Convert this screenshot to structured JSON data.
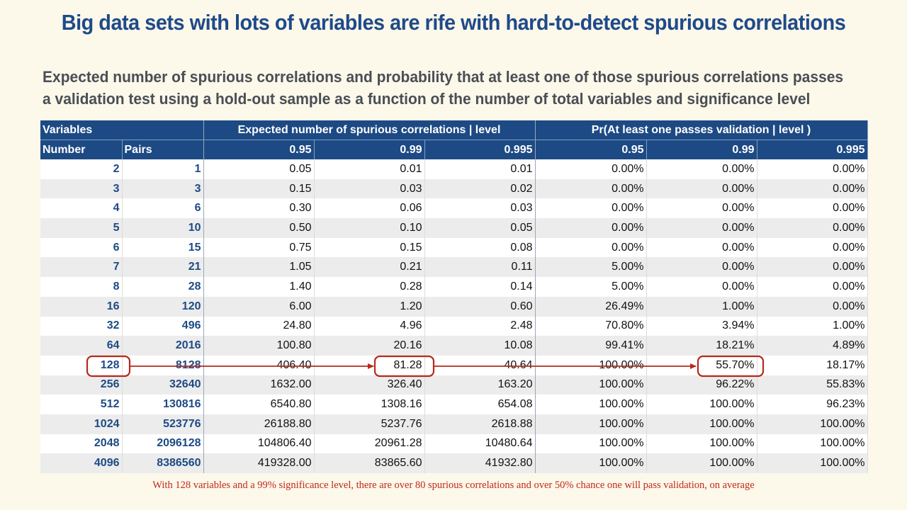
{
  "title": "Big data sets with lots of variables are rife with hard-to-detect spurious correlations",
  "subtitle": {
    "line1": "Expected number of spurious correlations and probability that at least one of those spurious correlations passes",
    "line2": "a validation test using a hold-out sample as a function of the number of total variables and significance level"
  },
  "table": {
    "group_headers": {
      "variables": "Variables",
      "expected": "Expected number of spurious correlations | level",
      "probability": "Pr(At least one passes validation | level )"
    },
    "column_headers": [
      "Number",
      "Pairs",
      "0.95",
      "0.99",
      "0.995",
      "0.95",
      "0.99",
      "0.995"
    ],
    "rows": [
      [
        "2",
        "1",
        "0.05",
        "0.01",
        "0.01",
        "0.00%",
        "0.00%",
        "0.00%"
      ],
      [
        "3",
        "3",
        "0.15",
        "0.03",
        "0.02",
        "0.00%",
        "0.00%",
        "0.00%"
      ],
      [
        "4",
        "6",
        "0.30",
        "0.06",
        "0.03",
        "0.00%",
        "0.00%",
        "0.00%"
      ],
      [
        "5",
        "10",
        "0.50",
        "0.10",
        "0.05",
        "0.00%",
        "0.00%",
        "0.00%"
      ],
      [
        "6",
        "15",
        "0.75",
        "0.15",
        "0.08",
        "0.00%",
        "0.00%",
        "0.00%"
      ],
      [
        "7",
        "21",
        "1.05",
        "0.21",
        "0.11",
        "5.00%",
        "0.00%",
        "0.00%"
      ],
      [
        "8",
        "28",
        "1.40",
        "0.28",
        "0.14",
        "5.00%",
        "0.00%",
        "0.00%"
      ],
      [
        "16",
        "120",
        "6.00",
        "1.20",
        "0.60",
        "26.49%",
        "1.00%",
        "0.00%"
      ],
      [
        "32",
        "496",
        "24.80",
        "4.96",
        "2.48",
        "70.80%",
        "3.94%",
        "1.00%"
      ],
      [
        "64",
        "2016",
        "100.80",
        "20.16",
        "10.08",
        "99.41%",
        "18.21%",
        "4.89%"
      ],
      [
        "128",
        "8128",
        "406.40",
        "81.28",
        "40.64",
        "100.00%",
        "55.70%",
        "18.17%"
      ],
      [
        "256",
        "32640",
        "1632.00",
        "326.40",
        "163.20",
        "100.00%",
        "96.22%",
        "55.83%"
      ],
      [
        "512",
        "130816",
        "6540.80",
        "1308.16",
        "654.08",
        "100.00%",
        "100.00%",
        "96.23%"
      ],
      [
        "1024",
        "523776",
        "26188.80",
        "5237.76",
        "2618.88",
        "100.00%",
        "100.00%",
        "100.00%"
      ],
      [
        "2048",
        "2096128",
        "104806.40",
        "20961.28",
        "10480.64",
        "100.00%",
        "100.00%",
        "100.00%"
      ],
      [
        "4096",
        "8386560",
        "419328.00",
        "83865.60",
        "41932.80",
        "100.00%",
        "100.00%",
        "100.00%"
      ]
    ]
  },
  "footnote": "With 128 variables and a 99% significance level, there are over 80 spurious correlations and over 50% chance one will pass validation, on average",
  "colors": {
    "background": "#fcf8ea",
    "title": "#1f4a8a",
    "header": "#1d4a84",
    "highlight": "#b52a1c",
    "footnote": "#c0281b"
  }
}
